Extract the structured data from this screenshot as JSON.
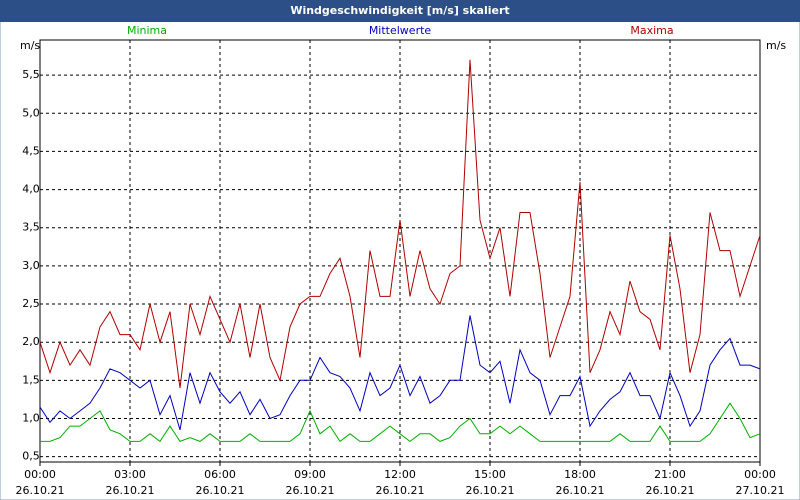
{
  "chart_data": {
    "type": "line",
    "title": "Windgeschwindigkeit [m/s] skaliert",
    "y_label": "m/s",
    "x": [
      0,
      20,
      40,
      60,
      80,
      100,
      120,
      140,
      160,
      180,
      200,
      220,
      240,
      260,
      280,
      300,
      320,
      340,
      360,
      380,
      400,
      420,
      440,
      460,
      480,
      500,
      520,
      540,
      560,
      580,
      600,
      620,
      640,
      660,
      680,
      700,
      720,
      740,
      760,
      780,
      800,
      820,
      840,
      860,
      880,
      900,
      920,
      940,
      960,
      980,
      1000,
      1020,
      1040,
      1060,
      1080,
      1100,
      1120,
      1140,
      1160,
      1180,
      1200,
      1220,
      1240,
      1260,
      1280,
      1300,
      1320,
      1340,
      1360,
      1380,
      1400,
      1420,
      1440
    ],
    "xlim": [
      0,
      1440
    ],
    "xticks": [
      {
        "value": 0,
        "label": "00:00"
      },
      {
        "value": 180,
        "label": "03:00"
      },
      {
        "value": 360,
        "label": "06:00"
      },
      {
        "value": 540,
        "label": "09:00"
      },
      {
        "value": 720,
        "label": "12:00"
      },
      {
        "value": 900,
        "label": "15:00"
      },
      {
        "value": 1080,
        "label": "18:00"
      },
      {
        "value": 1260,
        "label": "21:00"
      },
      {
        "value": 1440,
        "label": "00:00"
      }
    ],
    "xtick_dates": [
      "26.10.21",
      "26.10.21",
      "26.10.21",
      "26.10.21",
      "26.10.21",
      "26.10.21",
      "26.10.21",
      "26.10.21",
      "27.10.21"
    ],
    "ylim": [
      0.43,
      5.96
    ],
    "yticks": [
      {
        "value": 0.5,
        "label": "0,5"
      },
      {
        "value": 1,
        "label": "1,0"
      },
      {
        "value": 1.5,
        "label": "1,5"
      },
      {
        "value": 2,
        "label": "2,0"
      },
      {
        "value": 2.5,
        "label": "2,5"
      },
      {
        "value": 3,
        "label": "3,0"
      },
      {
        "value": 3.5,
        "label": "3,5"
      },
      {
        "value": 4,
        "label": "4,0"
      },
      {
        "value": 4.5,
        "label": "4,5"
      },
      {
        "value": 5,
        "label": "5,0"
      },
      {
        "value": 5.5,
        "label": "5,5"
      }
    ],
    "grid": true,
    "series": [
      {
        "name": "Minima",
        "color": "#00b000",
        "values": [
          0.7,
          0.7,
          0.75,
          0.9,
          0.9,
          1.0,
          1.1,
          0.85,
          0.8,
          0.7,
          0.7,
          0.8,
          0.7,
          0.9,
          0.7,
          0.75,
          0.7,
          0.8,
          0.7,
          0.7,
          0.7,
          0.8,
          0.7,
          0.7,
          0.7,
          0.7,
          0.8,
          1.1,
          0.8,
          0.9,
          0.7,
          0.8,
          0.7,
          0.7,
          0.8,
          0.9,
          0.8,
          0.7,
          0.8,
          0.8,
          0.7,
          0.75,
          0.9,
          1.0,
          0.8,
          0.8,
          0.9,
          0.8,
          0.9,
          0.8,
          0.7,
          0.7,
          0.7,
          0.7,
          0.7,
          0.7,
          0.7,
          0.7,
          0.8,
          0.7,
          0.7,
          0.7,
          0.9,
          0.7,
          0.7,
          0.7,
          0.7,
          0.8,
          1.0,
          1.2,
          1.0,
          0.75,
          0.8
        ]
      },
      {
        "name": "Mittelwerte",
        "color": "#0000c0",
        "values": [
          1.15,
          0.95,
          1.1,
          1.0,
          1.1,
          1.2,
          1.4,
          1.65,
          1.6,
          1.5,
          1.4,
          1.5,
          1.05,
          1.3,
          0.85,
          1.6,
          1.2,
          1.6,
          1.35,
          1.2,
          1.35,
          1.05,
          1.25,
          1.0,
          1.05,
          1.3,
          1.5,
          1.5,
          1.8,
          1.6,
          1.55,
          1.4,
          1.1,
          1.6,
          1.3,
          1.4,
          1.7,
          1.3,
          1.55,
          1.2,
          1.3,
          1.5,
          1.5,
          2.35,
          1.7,
          1.6,
          1.75,
          1.2,
          1.9,
          1.6,
          1.5,
          1.05,
          1.3,
          1.3,
          1.55,
          0.9,
          1.1,
          1.25,
          1.35,
          1.6,
          1.3,
          1.3,
          1.0,
          1.6,
          1.3,
          0.9,
          1.1,
          1.7,
          1.9,
          2.05,
          1.7,
          1.7,
          1.65
        ]
      },
      {
        "name": "Maxima",
        "color": "#b00000",
        "values": [
          2.0,
          1.6,
          2.0,
          1.7,
          1.9,
          1.7,
          2.2,
          2.4,
          2.1,
          2.1,
          1.9,
          2.5,
          2.0,
          2.4,
          1.4,
          2.5,
          2.1,
          2.6,
          2.3,
          2.0,
          2.5,
          1.8,
          2.5,
          1.8,
          1.5,
          2.2,
          2.5,
          2.6,
          2.6,
          2.9,
          3.1,
          2.6,
          1.8,
          3.2,
          2.6,
          2.6,
          3.6,
          2.6,
          3.2,
          2.7,
          2.5,
          2.9,
          3.0,
          5.7,
          3.6,
          3.1,
          3.5,
          2.6,
          3.7,
          3.7,
          2.9,
          1.8,
          2.2,
          2.6,
          4.1,
          1.6,
          1.9,
          2.4,
          2.1,
          2.8,
          2.4,
          2.3,
          1.9,
          3.4,
          2.7,
          1.6,
          2.1,
          3.7,
          3.2,
          3.2,
          2.6,
          3.0,
          3.4
        ]
      }
    ]
  }
}
